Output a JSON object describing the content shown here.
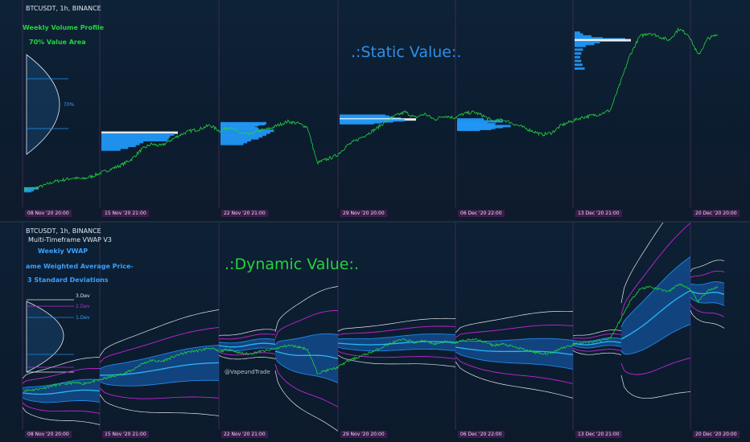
{
  "top": {
    "symbol": "BTCUSDT, 1h, BINANCE",
    "title_1": "Weekly Volume Profile",
    "title_2": "70% Value Area",
    "heading": ".:Static Value:.",
    "curve_pct_label": "70%",
    "x_labels": [
      "08 Nov '20   20:00",
      "15 Nov '20   21:00",
      "22 Nov '20   21:00",
      "29 Nov '20   20:00",
      "06 Dec '20   22:00",
      "13 Dec '20   21:00",
      "20 Dec '20   20:00"
    ]
  },
  "bottom": {
    "symbol": "BTCUSDT, 1h, BINANCE",
    "indicator": "Multi-Timeframe VWAP V3",
    "title_1": "Weekly VWAP",
    "title_2": "ame Weighted Average Price-",
    "title_3": "3 Standard Deviations",
    "heading": ".:Dynamic Value:.",
    "watermark": "@VapeundTrade",
    "dev_labels": [
      "3.Dev",
      "2.Dev",
      "1.Dev"
    ],
    "x_labels": [
      "08 Nov '20   20:00",
      "15 Nov '20   21:00",
      "22 Nov '20   21:00",
      "29 Nov '20   20:00",
      "06 Dec '20   22:00",
      "13 Dec '20   21:00",
      "20 Dec '20   20:00"
    ]
  },
  "colors": {
    "price": "#22d43f",
    "profile": "#2196f3",
    "vwap": "#29b6f6",
    "dev1": "#1e88e5",
    "dev2": "#c026d3",
    "dev3": "#e5e7eb",
    "band_fill": "#1565c0",
    "session_line": "#3b2a55"
  },
  "chart_data": [
    {
      "type": "line",
      "title": "",
      "series": [
        {
          "values": [
            15400,
            15450,
            15600,
            15800,
            15900,
            16000,
            15950,
            16100,
            16300,
            16500,
            16700,
            17000,
            17500,
            17800,
            17700,
            18000,
            18300,
            18500,
            18600,
            18800,
            18500,
            18700,
            18400,
            18300,
            18500,
            18600,
            18800,
            19000,
            18900,
            18700,
            16800,
            17000,
            17200,
            17700,
            18000,
            18300,
            18600,
            19000,
            19300,
            19500,
            19200,
            19400,
            19100,
            19300,
            19200,
            19400,
            19500,
            19300,
            19000,
            19100,
            18900,
            18700,
            18500,
            18300,
            18400,
            18800,
            19000,
            19200,
            19300,
            19400,
            19600,
            21000,
            22500,
            23500,
            23700,
            23500,
            23300,
            23900,
            23600,
            22500,
            23400,
            23600
          ]
        }
      ],
      "volume_profiles": [
        {
          "session": "08 Nov '20",
          "bars": [
            [
              15450,
              0.3
            ],
            [
              15350,
              0.2
            ],
            [
              15300,
              0.15
            ]
          ]
        },
        {
          "session": "15 Nov '20",
          "bars": [
            [
              18400,
              1.0
            ],
            [
              18300,
              0.95
            ],
            [
              18200,
              0.9
            ],
            [
              18100,
              0.88
            ],
            [
              18000,
              0.86
            ],
            [
              17900,
              0.55
            ],
            [
              17800,
              0.5
            ],
            [
              17700,
              0.45
            ],
            [
              17600,
              0.35
            ],
            [
              17500,
              0.25
            ]
          ]
        },
        {
          "session": "22 Nov '20",
          "bars": [
            [
              18900,
              0.6
            ],
            [
              18850,
              0.58
            ],
            [
              18800,
              0.5
            ],
            [
              18700,
              0.45
            ],
            [
              18650,
              0.48
            ],
            [
              18600,
              0.5
            ],
            [
              18500,
              0.7
            ],
            [
              18400,
              0.65
            ],
            [
              18300,
              0.6
            ],
            [
              18200,
              0.55
            ],
            [
              18100,
              0.5
            ],
            [
              18000,
              0.4
            ],
            [
              17900,
              0.35
            ],
            [
              17800,
              0.3
            ]
          ]
        },
        {
          "session": "29 Nov '20",
          "bars": [
            [
              19300,
              0.6
            ],
            [
              19250,
              0.65
            ],
            [
              19200,
              0.7
            ],
            [
              19150,
              0.8
            ],
            [
              19100,
              1.0
            ],
            [
              19050,
              0.85
            ],
            [
              19000,
              0.7
            ],
            [
              18950,
              0.55
            ],
            [
              18900,
              0.45
            ]
          ]
        },
        {
          "session": "06 Dec '20",
          "bars": [
            [
              19100,
              0.35
            ],
            [
              19000,
              0.6
            ],
            [
              18950,
              0.4
            ],
            [
              18900,
              0.3
            ],
            [
              18850,
              0.5
            ],
            [
              18800,
              0.45
            ],
            [
              18750,
              0.7
            ],
            [
              18700,
              0.6
            ],
            [
              18650,
              0.5
            ],
            [
              18600,
              0.45
            ],
            [
              18550,
              0.3
            ]
          ]
        },
        {
          "session": "13 Dec '20",
          "bars": [
            [
              23700,
              0.1
            ],
            [
              23600,
              0.15
            ],
            [
              23500,
              0.3
            ],
            [
              23400,
              0.5
            ],
            [
              23350,
              0.9
            ],
            [
              23300,
              1.0
            ],
            [
              23200,
              0.45
            ],
            [
              23100,
              0.35
            ],
            [
              23000,
              0.2
            ],
            [
              22800,
              0.15
            ],
            [
              22600,
              0.12
            ],
            [
              22400,
              0.1
            ],
            [
              22200,
              0.12
            ],
            [
              22000,
              0.14
            ],
            [
              21800,
              0.18
            ]
          ]
        }
      ],
      "value_area_pct": 70
    },
    {
      "type": "line",
      "title": "",
      "series": [
        {
          "name": "",
          "values": []
        }
      ],
      "sessions": [
        "08 Nov '20",
        "15 Nov '20",
        "22 Nov '20",
        "29 Nov '20",
        "06 Dec '20",
        "13 Dec '20",
        "20 Dec '20"
      ],
      "deviation_levels": [
        1,
        2,
        3
      ]
    }
  ]
}
